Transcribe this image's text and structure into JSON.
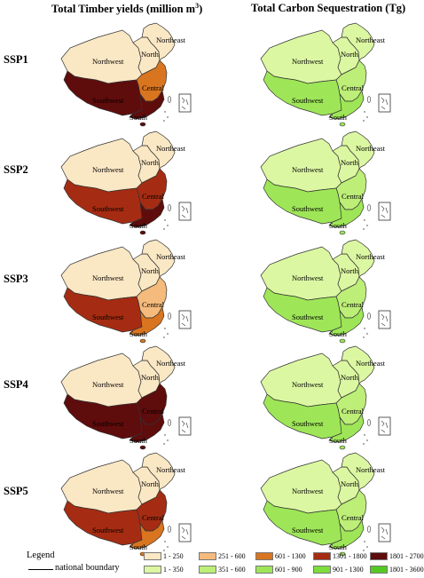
{
  "columns": [
    {
      "title_main": "Total Timber yields (million m",
      "title_sup": "3",
      "title_end": ")"
    },
    {
      "title_main": "Total Carbon Sequestration (Tg)",
      "title_sup": "",
      "title_end": ""
    }
  ],
  "rows": [
    "SSP1",
    "SSP2",
    "SSP3",
    "SSP4",
    "SSP5"
  ],
  "region_names": {
    "northeast": "Northeast",
    "north": "North",
    "northwest": "Northwest",
    "central": "Central",
    "southwest": "Southwest",
    "south": "South"
  },
  "colors": {
    "timber": [
      "#fae7c4",
      "#f4bb7c",
      "#d9751f",
      "#a52c12",
      "#5f0c0c"
    ],
    "carbon": [
      "#dcf7a2",
      "#bdee78",
      "#9ee657",
      "#7ddd3c",
      "#55c923"
    ]
  },
  "map_data": {
    "timber": [
      {
        "northeast": 0,
        "north": 0,
        "northwest": 0,
        "central": 2,
        "southwest": 4,
        "south": 4
      },
      {
        "northeast": 0,
        "north": 0,
        "northwest": 0,
        "central": 3,
        "southwest": 3,
        "south": 4
      },
      {
        "northeast": 0,
        "north": 0,
        "northwest": 0,
        "central": 1,
        "southwest": 3,
        "south": 2
      },
      {
        "northeast": 0,
        "north": 0,
        "northwest": 0,
        "central": 4,
        "southwest": 4,
        "south": 4
      },
      {
        "northeast": 0,
        "north": 0,
        "northwest": 0,
        "central": 3,
        "southwest": 3,
        "south": 2
      }
    ],
    "carbon": [
      {
        "northeast": 0,
        "north": 0,
        "northwest": 0,
        "central": 1,
        "southwest": 2,
        "south": 2
      },
      {
        "northeast": 0,
        "north": 0,
        "northwest": 0,
        "central": 1,
        "southwest": 2,
        "south": 2
      },
      {
        "northeast": 0,
        "north": 0,
        "northwest": 0,
        "central": 1,
        "southwest": 2,
        "south": 2
      },
      {
        "northeast": 0,
        "north": 0,
        "northwest": 0,
        "central": 1,
        "southwest": 2,
        "south": 2
      },
      {
        "northeast": 0,
        "north": 0,
        "northwest": 0,
        "central": 1,
        "southwest": 2,
        "south": 2
      }
    ]
  },
  "legend": {
    "title": "Legend",
    "boundary_label": "national boundary",
    "timber_classes": [
      "1 - 250",
      "251 - 600",
      "601 - 1300",
      "1301 - 1800",
      "1801 - 2700"
    ],
    "carbon_classes": [
      "1 - 350",
      "351 - 600",
      "601 - 900",
      "901 - 1300",
      "1801 - 3600"
    ]
  }
}
